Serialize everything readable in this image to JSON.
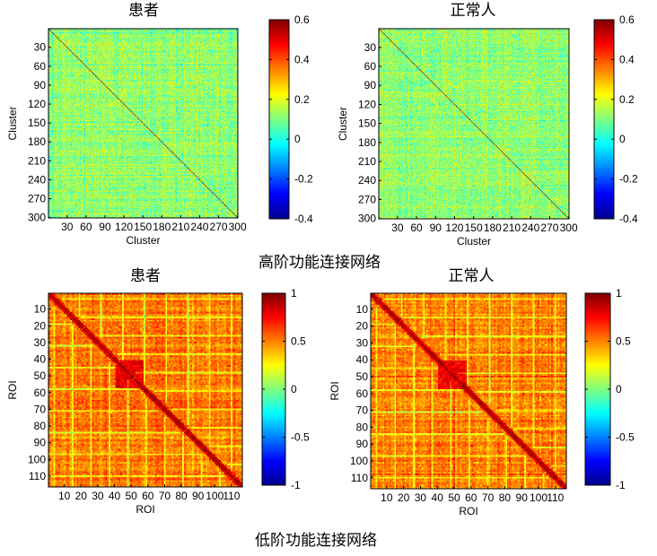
{
  "section_captions": [
    "高阶功能连接网络",
    "低阶功能连接网络"
  ],
  "colormap": [
    "#00008f",
    "#0000ff",
    "#0080ff",
    "#00ffff",
    "#80ff80",
    "#ffff00",
    "#ff8000",
    "#ff0000",
    "#800000"
  ],
  "chart_data": [
    {
      "type": "heatmap",
      "title": "患者",
      "xlabel": "Cluster",
      "ylabel": "Cluster",
      "size": 300,
      "xticks": [
        "30",
        "60",
        "90",
        "120",
        "150",
        "180",
        "210",
        "240",
        "270",
        "300"
      ],
      "yticks": [
        "30",
        "60",
        "90",
        "120",
        "150",
        "180",
        "210",
        "240",
        "270",
        "300"
      ],
      "clim": [
        -0.4,
        0.6
      ],
      "colorbar_ticks": [
        "0.6",
        "0.4",
        "0.2",
        "0",
        "-0.2",
        "-0.4"
      ],
      "diagonal": 0.6,
      "pattern": "high-order"
    },
    {
      "type": "heatmap",
      "title": "正常人",
      "xlabel": "Cluster",
      "ylabel": "Cluster",
      "size": 300,
      "xticks": [
        "30",
        "60",
        "90",
        "120",
        "150",
        "180",
        "210",
        "240",
        "270",
        "300"
      ],
      "yticks": [
        "30",
        "60",
        "90",
        "120",
        "150",
        "180",
        "210",
        "240",
        "270",
        "300"
      ],
      "clim": [
        -0.4,
        0.6
      ],
      "colorbar_ticks": [
        "0.6",
        "0.4",
        "0.2",
        "0",
        "-0.2",
        "-0.4"
      ],
      "diagonal": 0.6,
      "pattern": "high-order"
    },
    {
      "type": "heatmap",
      "title": "患者",
      "xlabel": "ROI",
      "ylabel": "ROI",
      "size": 116,
      "xticks": [
        "10",
        "20",
        "30",
        "40",
        "50",
        "60",
        "70",
        "80",
        "90",
        "100",
        "110"
      ],
      "yticks": [
        "10",
        "20",
        "30",
        "40",
        "50",
        "60",
        "70",
        "80",
        "90",
        "100",
        "110"
      ],
      "clim": [
        -1,
        1
      ],
      "colorbar_ticks": [
        "1",
        "0.5",
        "0",
        "-0.5",
        "-1"
      ],
      "diagonal": 1,
      "pattern": "low-order"
    },
    {
      "type": "heatmap",
      "title": "正常人",
      "xlabel": "ROI",
      "ylabel": "ROI",
      "size": 116,
      "xticks": [
        "10",
        "20",
        "30",
        "40",
        "50",
        "60",
        "70",
        "80",
        "90",
        "100",
        "110"
      ],
      "yticks": [
        "10",
        "20",
        "30",
        "40",
        "50",
        "60",
        "70",
        "80",
        "90",
        "100",
        "110"
      ],
      "clim": [
        -1,
        1
      ],
      "colorbar_ticks": [
        "1",
        "0.5",
        "0",
        "-0.5",
        "-1"
      ],
      "diagonal": 1,
      "pattern": "low-order"
    }
  ]
}
